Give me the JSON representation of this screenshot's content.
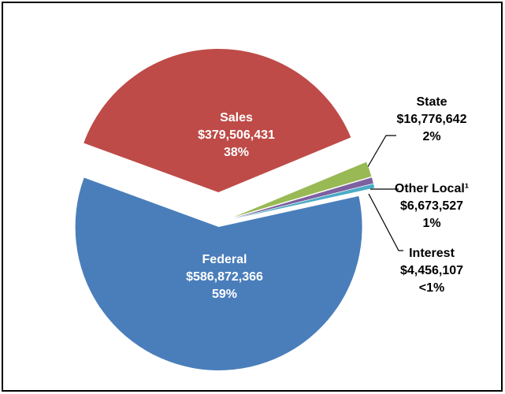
{
  "chart_data": {
    "type": "pie",
    "categories": [
      "Federal",
      "Sales",
      "State",
      "Other Local¹",
      "Interest"
    ],
    "values": [
      586872366,
      379506431,
      16776642,
      6673527,
      4456107
    ],
    "value_labels": [
      "$586,872,366",
      "$379,506,431",
      "$16,776,642",
      "$6,673,527",
      "$4,456,107"
    ],
    "percent_labels": [
      "59%",
      "38%",
      "2%",
      "1%",
      "<1%"
    ],
    "colors": [
      "#4a7ebb",
      "#be4b48",
      "#98b954",
      "#7d60a0",
      "#4bacc6"
    ]
  }
}
